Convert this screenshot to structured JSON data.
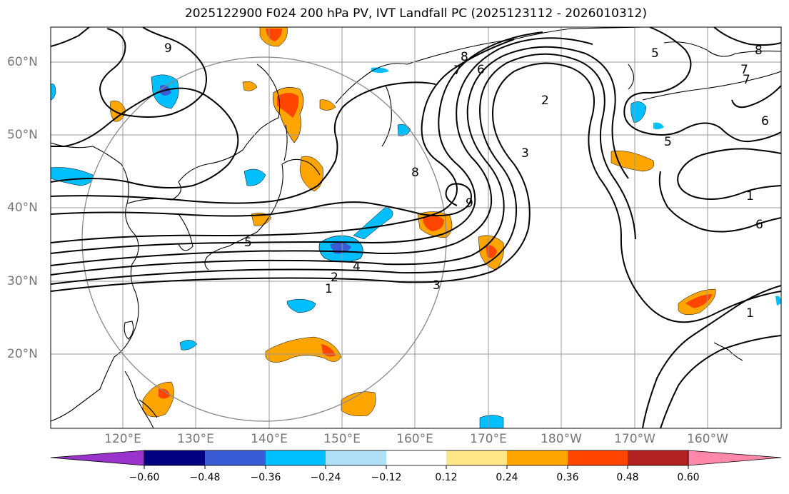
{
  "title": "2025122900 F024 200 hPa PV, IVT Landfall PC (2025123112 - 2026010312)",
  "latitude_labels": [
    "60°N",
    "50°N",
    "40°N",
    "30°N",
    "20°N"
  ],
  "longitude_labels": [
    "120°E",
    "130°E",
    "140°E",
    "150°E",
    "160°E",
    "170°E",
    "180°W",
    "170°W",
    "160°W"
  ],
  "contour_labels": [
    "9",
    "8",
    "7",
    "6",
    "2",
    "3",
    "5",
    "8",
    "7",
    "6",
    "1",
    "5",
    "4",
    "2",
    "3",
    "1",
    "1",
    "9",
    "5",
    "8",
    "6",
    "7"
  ],
  "colorbar": {
    "colors": [
      "#9933cc",
      "#000080",
      "#3a5bd6",
      "#00bfff",
      "#b0e0f8",
      "#ffffff",
      "#ffe88a",
      "#ffa500",
      "#ff4500",
      "#b22222",
      "#ff88aa"
    ],
    "tick_labels": [
      "−0.60",
      "−0.48",
      "−0.36",
      "−0.24",
      "−0.12",
      "0.12",
      "0.24",
      "0.36",
      "0.48",
      "0.60"
    ]
  }
}
